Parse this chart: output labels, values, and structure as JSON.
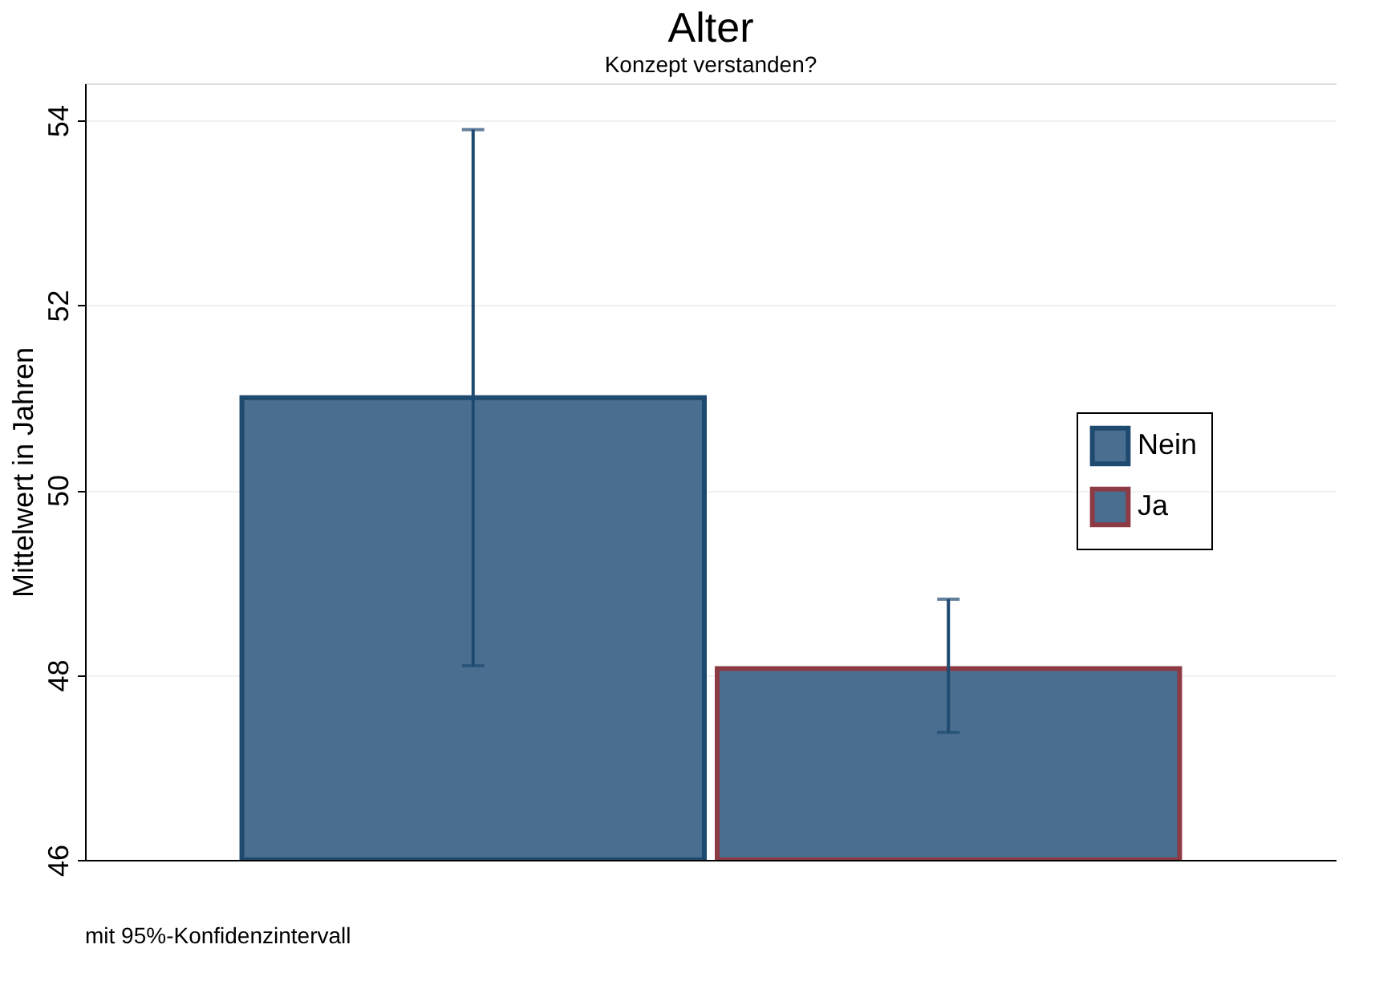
{
  "chart_data": {
    "type": "bar",
    "title": "Alter",
    "subtitle": "Konzept verstanden?",
    "ylabel": "Mittelwert in Jahren",
    "categories": [
      null
    ],
    "series": [
      {
        "name": "Nein",
        "color": "#4a6e8f",
        "values": [
          51.0
        ],
        "errors": [
          [
            48.1,
            53.9
          ]
        ]
      },
      {
        "name": "Ja",
        "color": "#4a6e8f",
        "values": [
          48.07
        ],
        "errors": [
          [
            47.38,
            48.82
          ]
        ]
      }
    ],
    "ylim": [
      46,
      54.4
    ],
    "yticks": [
      46,
      48,
      50,
      52,
      54
    ],
    "grid": "y",
    "legend": "right",
    "annotations": [
      "mit 95%-Konfidenzintervall"
    ]
  }
}
